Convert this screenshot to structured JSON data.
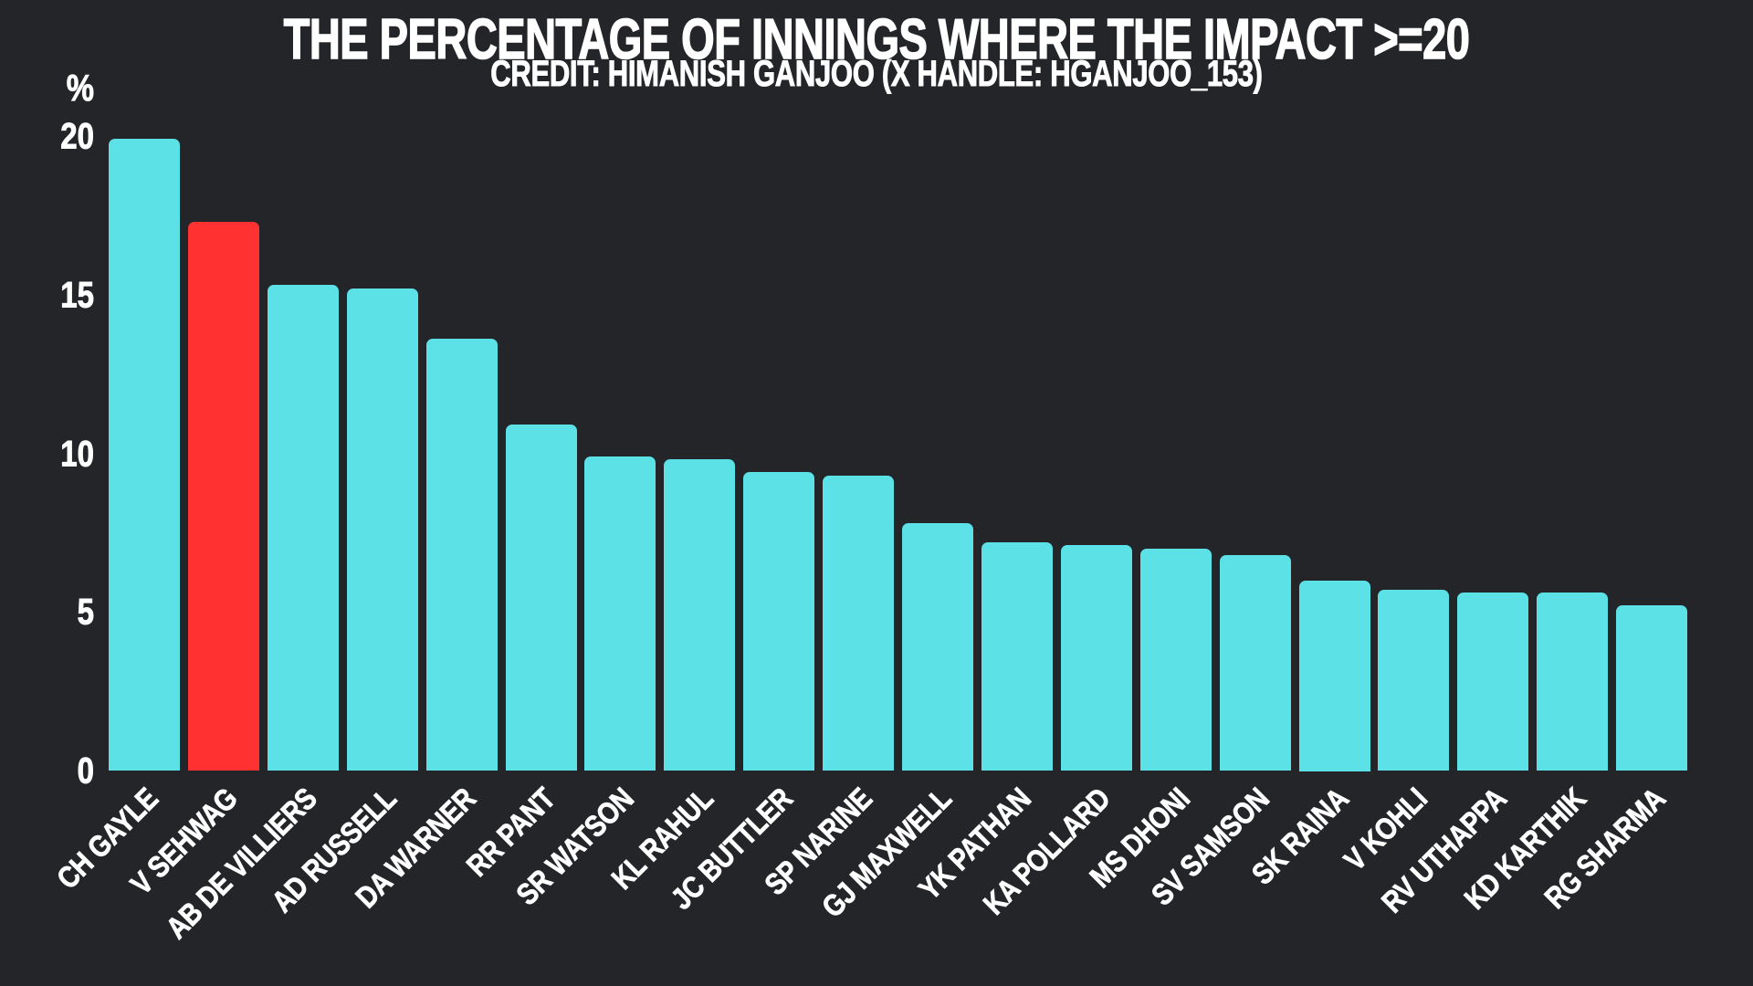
{
  "chart_data": {
    "type": "bar",
    "title": "THE PERCENTAGE OF INNINGS WHERE THE IMPACT >=20",
    "subtitle": "CREDIT: HIMANISH GANJOO (X HANDLE: HGANJOO_153)",
    "ylabel": "%",
    "xlabel": "",
    "ylim": [
      0,
      20
    ],
    "yticks": [
      0,
      5,
      10,
      15,
      20
    ],
    "grid": false,
    "legend_position": "none",
    "categories": [
      "CH GAYLE",
      "V SEHWAG",
      "AB DE VILLIERS",
      "AD RUSSELL",
      "DA WARNER",
      "RR PANT",
      "SR WATSON",
      "KL RAHUL",
      "JC BUTTLER",
      "SP NARINE",
      "GJ MAXWELL",
      "YK PATHAN",
      "KA POLLARD",
      "MS DHONI",
      "SV SAMSON",
      "SK RAINA",
      "V KOHLI",
      "RV UTHAPPA",
      "KD KARTHIK",
      "RG SHARMA"
    ],
    "values": [
      19.9,
      17.3,
      15.3,
      15.2,
      13.6,
      10.9,
      9.9,
      9.8,
      9.4,
      9.3,
      7.8,
      7.2,
      7.1,
      7.0,
      6.8,
      6.0,
      5.7,
      5.6,
      5.6,
      5.2
    ],
    "highlight_category": "V SEHWAG",
    "highlight_index": 1,
    "colors": {
      "bar": "#5CE1E6",
      "highlight": "#FF3131",
      "background": "#232529",
      "text": "#FFFFFF"
    }
  }
}
